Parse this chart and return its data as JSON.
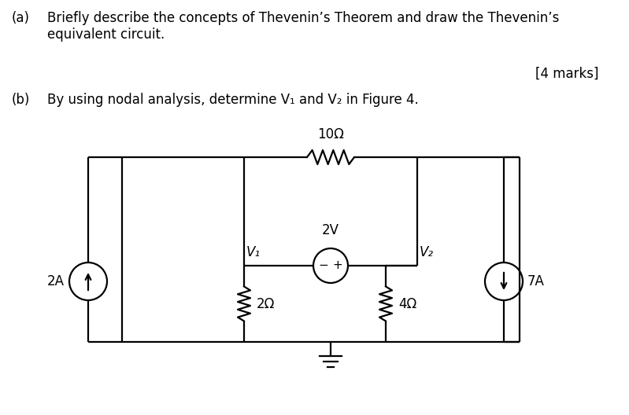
{
  "title_a": "(a)",
  "text_a": "Briefly describe the concepts of Thevenin’s Theorem and draw the Thevenin’s\nequivalent circuit.",
  "marks": "[4 marks]",
  "title_b": "(b)",
  "text_b": "By using nodal analysis, determine V₁ and V₂ in Figure 4.",
  "bg_color": "#ffffff",
  "text_color": "#000000",
  "resistor_10": "10Ω",
  "resistor_2": "2Ω",
  "resistor_4": "4Ω",
  "voltage_src": "2V",
  "current_2A": "2A",
  "current_7A": "7A",
  "node_V1": "V₁",
  "node_V2": "V₂",
  "fontsize_main": 12,
  "lw": 1.6,
  "lw_thick": 1.6
}
